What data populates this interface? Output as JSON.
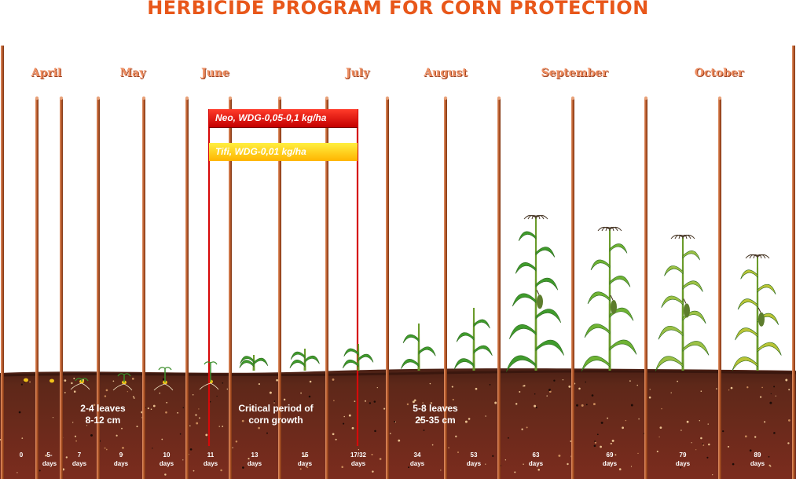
{
  "title": "HERBICIDE PROGRAM FOR CORN PROTECTION",
  "months": [
    "April",
    "May",
    "June",
    "July",
    "August",
    "September",
    "October"
  ],
  "treatments": [
    {
      "label": "Neo, WDG-0,05-0,1 kg/ha",
      "color": "#e30613"
    },
    {
      "label": "Tifi, WDG-0,01 kg/ha",
      "color": "#ffd200"
    }
  ],
  "soil_notes": [
    {
      "line1": "2-4 leaves",
      "line2": "8-12 cm"
    },
    {
      "line1": "Critical period of",
      "line2": "corn growth"
    },
    {
      "line1": "5-8 leaves",
      "line2": "25-35 cm"
    }
  ],
  "stages": [
    {
      "num": "0",
      "unit": ""
    },
    {
      "num": "5-",
      "unit": "days"
    },
    {
      "num": "7",
      "unit": "days"
    },
    {
      "num": "9",
      "unit": "days"
    },
    {
      "num": "10",
      "unit": "days"
    },
    {
      "num": "11",
      "unit": "days"
    },
    {
      "num": "13",
      "unit": "days"
    },
    {
      "num": "15",
      "unit": "days"
    },
    {
      "num": "17/32",
      "unit": "days"
    },
    {
      "num": "34",
      "unit": "days"
    },
    {
      "num": "53",
      "unit": "days"
    },
    {
      "num": "63",
      "unit": "days"
    },
    {
      "num": "69",
      "unit": "days"
    },
    {
      "num": "79",
      "unit": "days"
    },
    {
      "num": "89",
      "unit": "days"
    }
  ],
  "colors": {
    "title": "#e8571a",
    "month": "#ef8f62",
    "pole": "#c1602f",
    "soil_top": "#5a2718",
    "soil_bottom": "#7a2b1d",
    "leaf_green": "#3f9b2c",
    "leaf_yellow": "#b9c437"
  }
}
